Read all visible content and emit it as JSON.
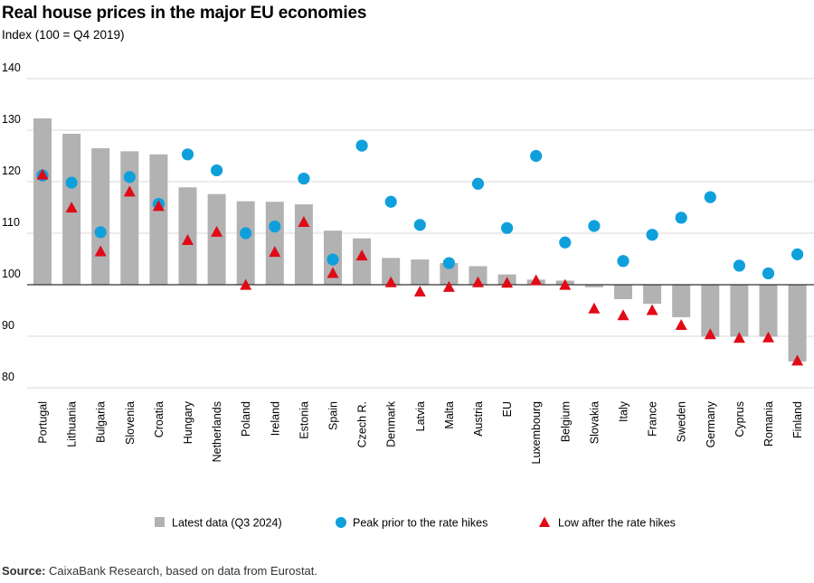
{
  "title": "Real house prices in the major EU economies",
  "subtitle": "Index (100 = Q4 2019)",
  "source_label": "Source:",
  "source_text": " CaixaBank Research, based on data from Eurostat.",
  "colors": {
    "bar": "#b2b2b2",
    "peak": "#0fa0dc",
    "low": "#e10a17",
    "grid": "#d9d9d9",
    "baseline": "#333333"
  },
  "chart_data": {
    "type": "bar",
    "title": "Real house prices in the major EU economies",
    "ylabel": "Index (100 = Q4 2019)",
    "ylim": [
      80,
      140
    ],
    "yticks": [
      80,
      90,
      100,
      110,
      120,
      130,
      140
    ],
    "grid": true,
    "legend_position": "bottom",
    "categories": [
      "Portugal",
      "Lithuania",
      "Bulgaria",
      "Slovenia",
      "Croatia",
      "Hungary",
      "Netherlands",
      "Poland",
      "Ireland",
      "Estonia",
      "Spain",
      "Czech R.",
      "Denmark",
      "Latvia",
      "Malta",
      "Austria",
      "EU",
      "Luxembourg",
      "Belgium",
      "Slovakia",
      "Italy",
      "France",
      "Sweden",
      "Germany",
      "Cyprus",
      "Romania",
      "Finland"
    ],
    "series": [
      {
        "name": "Latest data (Q3 2024)",
        "kind": "bar",
        "values": [
          132.3,
          129.3,
          126.5,
          125.9,
          125.3,
          118.9,
          117.6,
          116.2,
          116.1,
          115.6,
          110.5,
          109.0,
          105.2,
          104.9,
          104.2,
          103.6,
          102.0,
          101.0,
          100.8,
          99.5,
          97.2,
          96.3,
          93.7,
          89.9,
          89.9,
          89.9,
          85.1
        ]
      },
      {
        "name": "Peak prior to the rate hikes",
        "kind": "circle",
        "values": [
          121.2,
          119.8,
          110.2,
          120.9,
          115.7,
          125.3,
          122.2,
          110.0,
          111.3,
          120.6,
          104.9,
          127.0,
          116.1,
          111.6,
          104.2,
          119.6,
          111.0,
          125.0,
          108.2,
          111.4,
          104.6,
          109.7,
          113.0,
          117.0,
          103.7,
          102.2,
          105.9
        ]
      },
      {
        "name": "Low after the rate hikes",
        "kind": "triangle",
        "values": [
          121.3,
          114.9,
          106.4,
          118.0,
          115.2,
          108.6,
          110.2,
          99.9,
          106.3,
          112.1,
          102.2,
          105.6,
          100.4,
          98.6,
          99.5,
          100.4,
          100.3,
          100.8,
          99.9,
          95.3,
          94.0,
          95.0,
          92.1,
          90.3,
          89.6,
          89.7,
          85.2
        ]
      }
    ]
  }
}
